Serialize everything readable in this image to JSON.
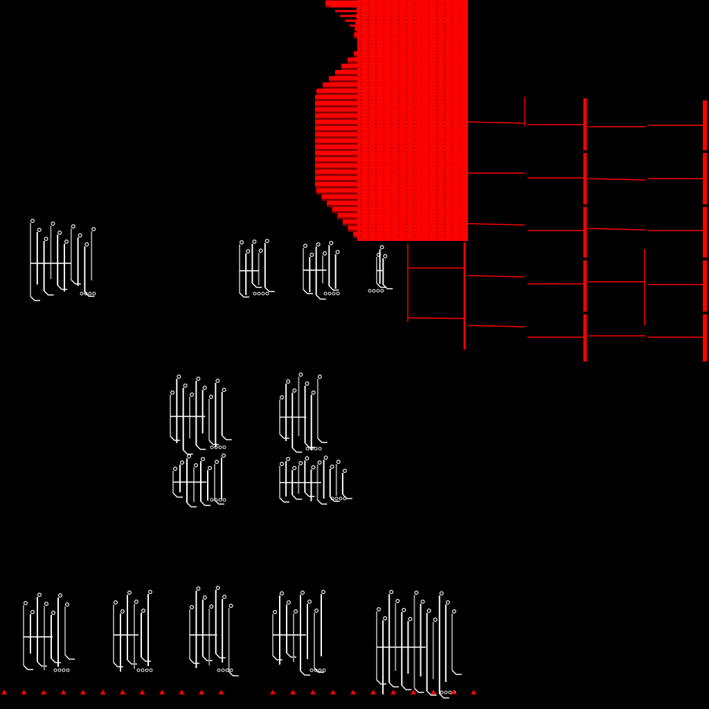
{
  "canvas": {
    "background": "#000000"
  },
  "colors": {
    "accent": "#ff0000",
    "accent_dark": "#8a0000",
    "trace": "#ffffff",
    "trace_mid": "#9a9a9a"
  },
  "elements": {
    "red_bus_block": {
      "icon": "striped-bus-block"
    },
    "wiring_grid": {
      "icon": "wire-grid"
    },
    "circuit_glyphs": {
      "icon": "circuit-trace-glyph"
    },
    "marker_row": {
      "icon": "triangle-marker-row"
    }
  }
}
